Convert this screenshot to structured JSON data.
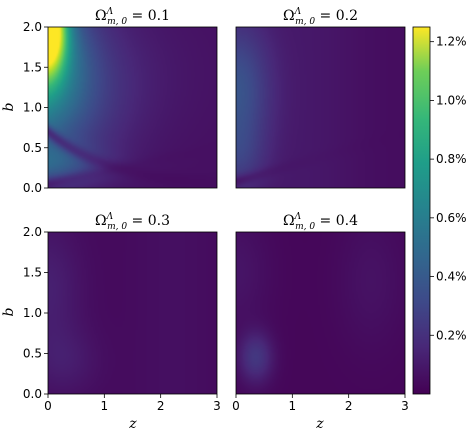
{
  "chart_data": {
    "type": "heatmap",
    "colormap": "viridis",
    "xlabel": "z",
    "ylabel": "b",
    "xlim": [
      0,
      3
    ],
    "ylim": [
      0,
      2
    ],
    "xticks": [
      "0",
      "1",
      "2",
      "3"
    ],
    "yticks": [
      "0.0",
      "0.5",
      "1.0",
      "1.5",
      "2.0"
    ],
    "colorbar": {
      "vmin": 0.0,
      "vmax": 1.25,
      "ticks": [
        "0.2%",
        "0.4%",
        "0.6%",
        "0.8%",
        "1.0%",
        "1.2%"
      ],
      "tick_values": [
        0.2,
        0.4,
        0.6,
        0.8,
        1.0,
        1.2
      ]
    },
    "panels": [
      {
        "title_value": "0.1",
        "peak": 1.23
      },
      {
        "title_value": "0.2",
        "peak": 0.42
      },
      {
        "title_value": "0.3",
        "peak": 0.12
      },
      {
        "title_value": "0.4",
        "peak": 0.22
      }
    ],
    "title_symbol": "Ω",
    "title_superscript": "Λ",
    "title_subscript": "m, 0"
  }
}
